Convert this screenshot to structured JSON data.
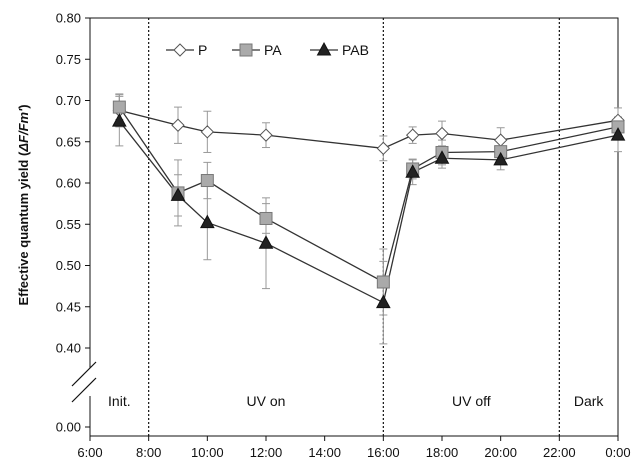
{
  "chart_data": {
    "type": "line",
    "ylabel_prefix": "Effective quantum yield (",
    "ylabel_italic": "ΔF/Fm'",
    "ylabel_suffix": ")",
    "y_tick_labels": [
      "0.80",
      "0.75",
      "0.70",
      "0.65",
      "0.60",
      "0.55",
      "0.50",
      "0.45",
      "0.40",
      "0.00"
    ],
    "x_tick_labels": [
      "6:00",
      "8:00",
      "10:00",
      "12:00",
      "14:00",
      "16:00",
      "18:00",
      "20:00",
      "22:00",
      "0:00"
    ],
    "ylim": [
      0.4,
      0.8
    ],
    "y_axis_break": "0.40–0.00",
    "phases": [
      "Init.",
      "UV on",
      "UV off",
      "Dark"
    ],
    "phase_boundaries": [
      "8:00",
      "16:00",
      "22:00"
    ],
    "legend_placement": "top-left",
    "series": [
      {
        "name": "P",
        "marker": "diamond-open",
        "x": [
          "7:00",
          "9:00",
          "10:00",
          "12:00",
          "16:00",
          "17:00",
          "18:00",
          "20:00",
          "0:00"
        ],
        "values": [
          0.688,
          0.67,
          0.662,
          0.658,
          0.642,
          0.658,
          0.66,
          0.652,
          0.676
        ],
        "errors": [
          0.02,
          0.022,
          0.025,
          0.015,
          0.015,
          0.01,
          0.015,
          0.015,
          0.015
        ]
      },
      {
        "name": "PA",
        "marker": "square",
        "x": [
          "7:00",
          "9:00",
          "10:00",
          "12:00",
          "16:00",
          "17:00",
          "18:00",
          "20:00",
          "0:00"
        ],
        "values": [
          0.692,
          0.588,
          0.603,
          0.557,
          0.48,
          0.617,
          0.637,
          0.638,
          0.668
        ],
        "errors": [
          0.015,
          0.04,
          0.022,
          0.018,
          0.04,
          0.012,
          0.015,
          0.012,
          0.012
        ]
      },
      {
        "name": "PAB",
        "marker": "triangle",
        "x": [
          "7:00",
          "9:00",
          "10:00",
          "12:00",
          "16:00",
          "17:00",
          "18:00",
          "20:00",
          "0:00"
        ],
        "values": [
          0.675,
          0.585,
          0.552,
          0.527,
          0.455,
          0.613,
          0.63,
          0.628,
          0.658
        ],
        "errors": [
          0.03,
          0.025,
          0.045,
          0.055,
          0.05,
          0.015,
          0.012,
          0.012,
          0.02
        ]
      }
    ]
  },
  "colors": {
    "axis": "#111111",
    "line": "#333333",
    "errorbar": "#999999",
    "marker_fill_P": "#ffffff",
    "marker_fill_PA": "#aaaaaa",
    "marker_fill_PAB": "#222222"
  }
}
